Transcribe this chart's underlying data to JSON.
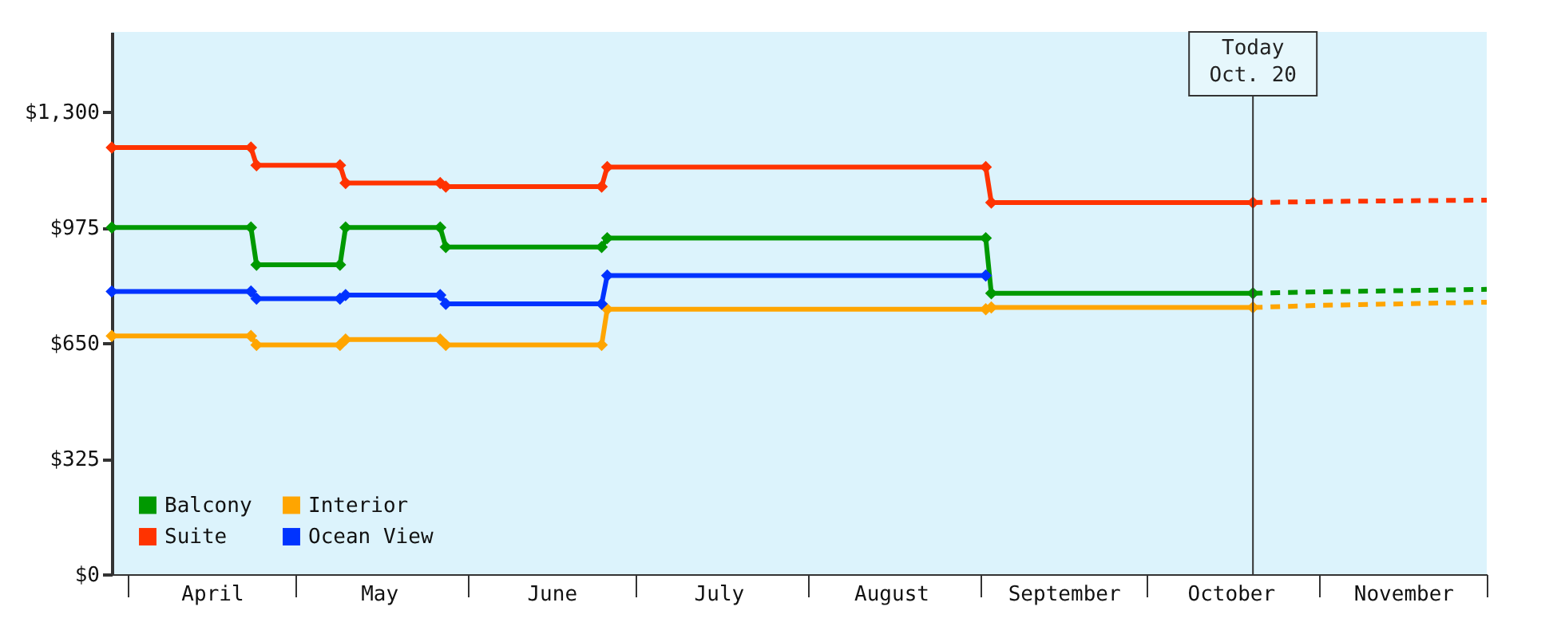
{
  "chart_data": {
    "type": "line",
    "xlim": [
      "--03-29",
      "--12-01"
    ],
    "ylim": [
      0,
      1525
    ],
    "yticks": [
      {
        "value": 0,
        "label": "$0"
      },
      {
        "value": 325,
        "label": "$325"
      },
      {
        "value": 650,
        "label": "$650"
      },
      {
        "value": 975,
        "label": "$975"
      },
      {
        "value": 1300,
        "label": "$1,300"
      }
    ],
    "xticks": [
      {
        "value": "--04-01",
        "label": null
      },
      {
        "value": "--04-16",
        "label": "April"
      },
      {
        "value": "--05-01",
        "label": null
      },
      {
        "value": "--05-16",
        "label": "May"
      },
      {
        "value": "--06-01",
        "label": null
      },
      {
        "value": "--06-16",
        "label": "June"
      },
      {
        "value": "--07-01",
        "label": null
      },
      {
        "value": "--07-16",
        "label": "July"
      },
      {
        "value": "--08-01",
        "label": null
      },
      {
        "value": "--08-16",
        "label": "August"
      },
      {
        "value": "--09-01",
        "label": null
      },
      {
        "value": "--09-16",
        "label": "September"
      },
      {
        "value": "--10-01",
        "label": null
      },
      {
        "value": "--10-16",
        "label": "October"
      },
      {
        "value": "--11-01",
        "label": null
      },
      {
        "value": "--11-16",
        "label": "November"
      },
      {
        "value": "--12-01",
        "label": null
      }
    ],
    "marker": "diamond",
    "legend": "bottom left",
    "series": [
      {
        "name": "Balcony",
        "color": "#009900",
        "x": [
          "--03-29",
          "--04-23",
          "--04-24",
          "--05-09",
          "--05-10",
          "--05-27",
          "--05-28",
          "--06-25",
          "--06-26",
          "--09-02",
          "--09-03",
          "--10-20"
        ],
        "values": [
          975,
          975,
          870,
          870,
          975,
          975,
          920,
          920,
          945,
          945,
          790,
          790
        ]
      },
      {
        "name": "Suite",
        "color": "#ff3300",
        "x": [
          "--03-29",
          "--04-23",
          "--04-24",
          "--05-09",
          "--05-10",
          "--05-27",
          "--05-28",
          "--06-25",
          "--06-26",
          "--09-02",
          "--09-03",
          "--10-20"
        ],
        "values": [
          1200,
          1200,
          1150,
          1150,
          1100,
          1100,
          1090,
          1090,
          1145,
          1145,
          1045,
          1045
        ]
      },
      {
        "name": "Interior",
        "color": "#ffa500",
        "x": [
          "--03-29",
          "--04-23",
          "--04-24",
          "--05-09",
          "--05-10",
          "--05-27",
          "--05-28",
          "--06-25",
          "--06-26",
          "--09-02",
          "--09-03",
          "--10-20"
        ],
        "values": [
          670,
          670,
          645,
          645,
          660,
          660,
          645,
          645,
          745,
          745,
          750,
          750
        ]
      },
      {
        "name": "Ocean View",
        "color": "#0033ff",
        "x": [
          "--03-29",
          "--04-23",
          "--04-24",
          "--05-09",
          "--05-10",
          "--05-27",
          "--05-28",
          "--06-25",
          "--06-26",
          "--09-02"
        ],
        "values": [
          795,
          795,
          775,
          775,
          785,
          785,
          760,
          760,
          840,
          840
        ]
      },
      {
        "color": "#ff3300",
        "line_style": "dashed",
        "marker": "none",
        "x": [
          "--10-20",
          "--11-01",
          "--12-01"
        ],
        "values": [
          1045,
          1048,
          1052
        ]
      },
      {
        "color": "#009900",
        "line_style": "dashed",
        "marker": "none",
        "x": [
          "--10-20",
          "--11-01",
          "--12-01"
        ],
        "values": [
          790,
          794,
          801
        ]
      },
      {
        "color": "#ffa500",
        "line_style": "dashed",
        "marker": "none",
        "x": [
          "--10-20",
          "--11-01",
          "--12-01"
        ],
        "values": [
          750,
          756,
          765
        ]
      }
    ],
    "ref_lines": [
      {
        "axis": "x",
        "value": "--10-20",
        "label": "Today\nOct. 20",
        "color": "#333333"
      }
    ]
  }
}
